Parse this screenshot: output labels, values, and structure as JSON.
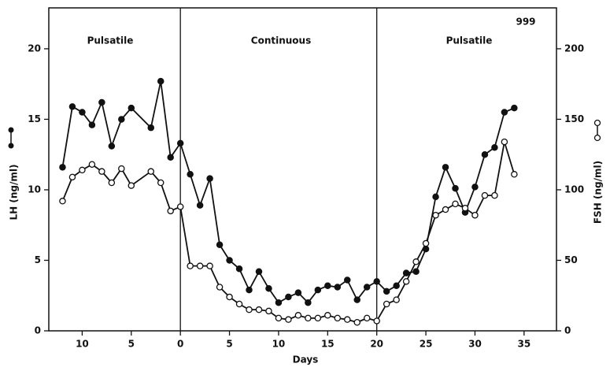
{
  "chart_data": {
    "type": "line",
    "x_label": "Days",
    "y_label": "LH (ng/ml)",
    "y2_label": "FSH (ng/ml)",
    "annotations": [
      "Pulsatile",
      "Continuous",
      "Pulsatile",
      "999"
    ],
    "phase_boundaries": [
      0,
      20
    ],
    "x": [
      -12,
      -11,
      -10,
      -9,
      -8,
      -7,
      -6,
      -5,
      -3,
      -2,
      -1,
      0,
      1,
      2,
      3,
      4,
      5,
      6,
      7,
      8,
      9,
      10,
      11,
      12,
      13,
      14,
      15,
      16,
      17,
      18,
      19,
      20,
      21,
      22,
      23,
      24,
      25,
      26,
      27,
      28,
      29,
      30,
      31,
      32,
      33,
      34
    ],
    "series": [
      {
        "name": "LH",
        "color": "#111111",
        "marker": "filled",
        "values": [
          11.6,
          15.9,
          15.5,
          14.6,
          16.2,
          13.1,
          15.0,
          15.8,
          14.4,
          17.7,
          12.3,
          13.3,
          11.1,
          8.9,
          10.8,
          6.1,
          5.0,
          4.4,
          2.9,
          4.2,
          3.0,
          2.0,
          2.4,
          2.7,
          2.0,
          2.9,
          3.2,
          3.1,
          3.6,
          2.2,
          3.1,
          3.5,
          2.8,
          3.2,
          4.1,
          4.2,
          5.8,
          9.5,
          11.6,
          10.1,
          8.4,
          10.2,
          12.5,
          13.0,
          15.5,
          15.8
        ]
      },
      {
        "name": "FSH",
        "color": "#111111",
        "marker": "open",
        "axis": "y2",
        "values": [
          92,
          109,
          114,
          118,
          113,
          105,
          115,
          103,
          113,
          105,
          85,
          88,
          46,
          46,
          46,
          31,
          24,
          19,
          15,
          15,
          14,
          9,
          8,
          11,
          9,
          9,
          11,
          9,
          8,
          6,
          9,
          7,
          19,
          22,
          35,
          49,
          62,
          82,
          86,
          90,
          87,
          82,
          96,
          96,
          134,
          111
        ]
      }
    ],
    "xlim": [
      -13.4,
      38.3
    ],
    "xticks": [
      {
        "value": -10,
        "label": "10"
      },
      {
        "value": -5,
        "label": "5"
      },
      0,
      5,
      10,
      15,
      20,
      25,
      30,
      35
    ],
    "ylim": [
      0,
      22.9
    ],
    "yticks": [
      0,
      5,
      10,
      15,
      20
    ],
    "y2lim": [
      0,
      229
    ],
    "y2ticks": [
      0,
      50,
      100,
      150,
      200
    ]
  }
}
